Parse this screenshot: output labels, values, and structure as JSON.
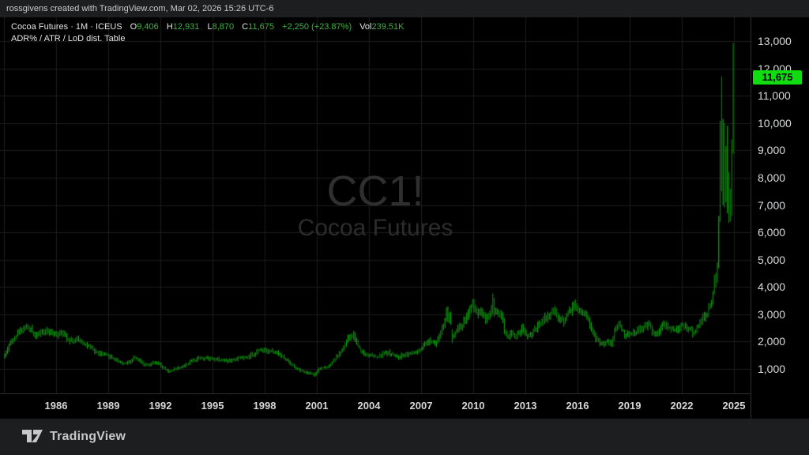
{
  "header": {
    "credit": "rossgivens created with TradingView.com, Mar 02, 2026 15:26 UTC-6"
  },
  "legend": {
    "symbol_line": "Cocoa Futures · 1M · ICEUS",
    "ohlc": {
      "o_label": "O",
      "o": "9,406",
      "h_label": "H",
      "h": "12,931",
      "l_label": "L",
      "l": "8,870",
      "c_label": "C",
      "c": "11,675",
      "change": "+2,250 (+23.87%)",
      "vol_label": "Vol",
      "vol": "239.51K"
    },
    "indicator_line": "ADR% / ATR / LoD dist. Table"
  },
  "watermark": {
    "symbol": "CC1!",
    "description": "Cocoa Futures"
  },
  "price_axis": {
    "last_price": "11,675",
    "last_price_value": 11675
  },
  "footer": {
    "logo_text": "TradingView"
  },
  "colors": {
    "bar_green_base": "#0f9d0f",
    "badge_green": "#10dd10",
    "legend_value_green": "#3cb43c",
    "grid": "#1c1c1c",
    "axis_border": "#2e2e2e",
    "frame_bg": "#1d1e20",
    "watermark_gray": "#2f2f2f"
  },
  "chart_data": {
    "type": "bar",
    "style": "ohlc-bars-monthly",
    "symbol": "CC1!",
    "title": "Cocoa Futures",
    "interval": "1M",
    "exchange": "ICEUS",
    "legend_note": "ADR% / ATR / LoD dist. Table",
    "last_bar": {
      "open": 9406,
      "high": 12931,
      "low": 8870,
      "close": 11675,
      "change": 2250,
      "change_pct": 23.87,
      "volume": "239.51K"
    },
    "grid": "on",
    "x_domain_years": [
      1983.0,
      2026.2
    ],
    "x_tick_years": [
      1986,
      1989,
      1992,
      1995,
      1998,
      2001,
      2004,
      2007,
      2010,
      2013,
      2016,
      2019,
      2022,
      2025
    ],
    "y_ticks": [
      1000,
      2000,
      3000,
      4000,
      5000,
      6000,
      7000,
      8000,
      9000,
      10000,
      11000,
      12000,
      13000
    ],
    "ylim": [
      100,
      13870
    ],
    "close_key_points": [
      [
        1983.04,
        1500
      ],
      [
        1983.3,
        1900
      ],
      [
        1983.6,
        2150
      ],
      [
        1983.9,
        2400
      ],
      [
        1984.2,
        2550
      ],
      [
        1984.5,
        2450
      ],
      [
        1984.8,
        2250
      ],
      [
        1985.1,
        2300
      ],
      [
        1985.4,
        2400
      ],
      [
        1985.7,
        2300
      ],
      [
        1986.0,
        2250
      ],
      [
        1986.3,
        2350
      ],
      [
        1986.6,
        2150
      ],
      [
        1987.0,
        2000
      ],
      [
        1987.2,
        2100
      ],
      [
        1987.5,
        1980
      ],
      [
        1987.8,
        1850
      ],
      [
        1988.1,
        1700
      ],
      [
        1988.4,
        1580
      ],
      [
        1988.7,
        1520
      ],
      [
        1989.0,
        1480
      ],
      [
        1989.3,
        1380
      ],
      [
        1989.6,
        1280
      ],
      [
        1989.9,
        1180
      ],
      [
        1990.2,
        1250
      ],
      [
        1990.5,
        1420
      ],
      [
        1990.7,
        1380
      ],
      [
        1991.0,
        1200
      ],
      [
        1991.3,
        1120
      ],
      [
        1991.6,
        1220
      ],
      [
        1991.9,
        1180
      ],
      [
        1992.2,
        1020
      ],
      [
        1992.5,
        900
      ],
      [
        1992.8,
        1000
      ],
      [
        1993.1,
        1050
      ],
      [
        1993.4,
        1120
      ],
      [
        1993.7,
        1250
      ],
      [
        1994.0,
        1350
      ],
      [
        1994.3,
        1420
      ],
      [
        1994.6,
        1380
      ],
      [
        1994.9,
        1400
      ],
      [
        1995.2,
        1380
      ],
      [
        1995.5,
        1320
      ],
      [
        1995.8,
        1300
      ],
      [
        1996.1,
        1320
      ],
      [
        1996.4,
        1380
      ],
      [
        1996.7,
        1400
      ],
      [
        1997.0,
        1400
      ],
      [
        1997.3,
        1520
      ],
      [
        1997.6,
        1650
      ],
      [
        1997.9,
        1720
      ],
      [
        1998.2,
        1680
      ],
      [
        1998.5,
        1620
      ],
      [
        1998.8,
        1540
      ],
      [
        1999.1,
        1400
      ],
      [
        1999.4,
        1250
      ],
      [
        1999.7,
        1080
      ],
      [
        2000.0,
        950
      ],
      [
        2000.3,
        880
      ],
      [
        2000.6,
        840
      ],
      [
        2000.9,
        790
      ],
      [
        2001.1,
        980
      ],
      [
        2001.4,
        1050
      ],
      [
        2001.7,
        1120
      ],
      [
        2002.0,
        1350
      ],
      [
        2002.3,
        1550
      ],
      [
        2002.6,
        1850
      ],
      [
        2002.8,
        2100
      ],
      [
        2003.1,
        2250
      ],
      [
        2003.3,
        1950
      ],
      [
        2003.6,
        1600
      ],
      [
        2003.9,
        1500
      ],
      [
        2004.2,
        1480
      ],
      [
        2004.5,
        1420
      ],
      [
        2004.8,
        1550
      ],
      [
        2005.1,
        1600
      ],
      [
        2005.4,
        1500
      ],
      [
        2005.7,
        1420
      ],
      [
        2006.0,
        1520
      ],
      [
        2006.3,
        1560
      ],
      [
        2006.6,
        1580
      ],
      [
        2006.9,
        1640
      ],
      [
        2007.2,
        1850
      ],
      [
        2007.5,
        2050
      ],
      [
        2007.8,
        1950
      ],
      [
        2008.1,
        2300
      ],
      [
        2008.4,
        2750
      ],
      [
        2008.55,
        3100
      ],
      [
        2008.7,
        2700
      ],
      [
        2008.85,
        2250
      ],
      [
        2009.0,
        2450
      ],
      [
        2009.3,
        2550
      ],
      [
        2009.6,
        2900
      ],
      [
        2009.95,
        3350
      ],
      [
        2010.2,
        3050
      ],
      [
        2010.5,
        3100
      ],
      [
        2010.7,
        2850
      ],
      [
        2010.95,
        3000
      ],
      [
        2011.15,
        3500
      ],
      [
        2011.3,
        3100
      ],
      [
        2011.6,
        2950
      ],
      [
        2011.9,
        2200
      ],
      [
        2012.2,
        2300
      ],
      [
        2012.5,
        2200
      ],
      [
        2012.8,
        2450
      ],
      [
        2013.1,
        2200
      ],
      [
        2013.4,
        2300
      ],
      [
        2013.7,
        2550
      ],
      [
        2014.0,
        2750
      ],
      [
        2014.3,
        2950
      ],
      [
        2014.6,
        3150
      ],
      [
        2014.9,
        2900
      ],
      [
        2015.2,
        2750
      ],
      [
        2015.5,
        3100
      ],
      [
        2015.8,
        3350
      ],
      [
        2016.0,
        3150
      ],
      [
        2016.3,
        3100
      ],
      [
        2016.6,
        2900
      ],
      [
        2016.9,
        2250
      ],
      [
        2017.2,
        2000
      ],
      [
        2017.45,
        1880
      ],
      [
        2017.7,
        2000
      ],
      [
        2017.95,
        1900
      ],
      [
        2018.2,
        2550
      ],
      [
        2018.4,
        2650
      ],
      [
        2018.7,
        2250
      ],
      [
        2019.0,
        2300
      ],
      [
        2019.3,
        2350
      ],
      [
        2019.6,
        2450
      ],
      [
        2019.9,
        2550
      ],
      [
        2020.1,
        2700
      ],
      [
        2020.3,
        2300
      ],
      [
        2020.6,
        2250
      ],
      [
        2020.9,
        2650
      ],
      [
        2021.2,
        2550
      ],
      [
        2021.5,
        2400
      ],
      [
        2021.8,
        2500
      ],
      [
        2022.1,
        2600
      ],
      [
        2022.4,
        2450
      ],
      [
        2022.7,
        2300
      ],
      [
        2022.95,
        2600
      ],
      [
        2023.2,
        2850
      ],
      [
        2023.45,
        3050
      ],
      [
        2023.7,
        3400
      ]
    ],
    "explicit_bars_ohlc": {
      "1992-06": [
        950,
        1000,
        850,
        900
      ],
      "2000-11": [
        800,
        860,
        710,
        780
      ],
      "2000-12": [
        780,
        900,
        740,
        850
      ],
      "2003-02": [
        2150,
        2400,
        2050,
        2250
      ],
      "2008-06": [
        2800,
        3250,
        2750,
        3100
      ],
      "2008-07": [
        3100,
        3290,
        2700,
        2850
      ],
      "2008-10": [
        2350,
        2450,
        1950,
        2200
      ],
      "2011-02": [
        3050,
        3760,
        2980,
        3520
      ],
      "2011-03": [
        3520,
        3600,
        2900,
        3050
      ],
      "2023-10": [
        3400,
        3860,
        3350,
        3800
      ],
      "2023-11": [
        3800,
        4450,
        3720,
        4250
      ],
      "2023-12": [
        4250,
        4520,
        3980,
        4300
      ],
      "2024-01": [
        4300,
        4900,
        4150,
        4780
      ],
      "2024-02": [
        4780,
        6600,
        4680,
        6440
      ],
      "2024-03": [
        6440,
        10080,
        6380,
        9700
      ],
      "2024-04": [
        9700,
        11710,
        7500,
        8680
      ],
      "2024-05": [
        8680,
        10150,
        7000,
        9300
      ],
      "2024-06": [
        9300,
        10000,
        6900,
        7730
      ],
      "2024-07": [
        7730,
        9150,
        7100,
        8900
      ],
      "2024-08": [
        8900,
        9900,
        6700,
        7100
      ],
      "2024-09": [
        7100,
        8200,
        6350,
        7000
      ],
      "2024-10": [
        7000,
        7600,
        6400,
        7300
      ],
      "2024-11": [
        7300,
        9400,
        6600,
        9100
      ],
      "2024-12": [
        9406,
        12931,
        8870,
        11675
      ]
    }
  }
}
